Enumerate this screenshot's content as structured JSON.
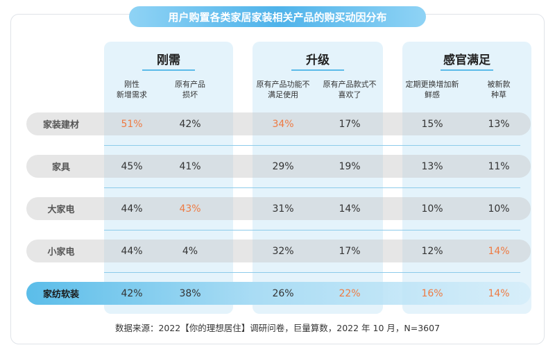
{
  "chart_data": {
    "type": "table",
    "title": "用户购置各类家居家装相关产品的购买动因分布",
    "groups": [
      {
        "name": "刚需",
        "columns": [
          "刚性新增需求",
          "原有产品损坏"
        ]
      },
      {
        "name": "升级",
        "columns": [
          "原有产品功能不满足使用",
          "原有产品款式不喜欢了"
        ]
      },
      {
        "name": "感官满足",
        "columns": [
          "定期更换增加新鲜感",
          "被新款种草"
        ]
      }
    ],
    "column_headers": [
      [
        "刚性",
        "新增需求"
      ],
      [
        "原有产品",
        "损坏"
      ],
      [
        "原有产品功能不",
        "满足使用"
      ],
      [
        "原有产品款式不",
        "喜欢了"
      ],
      [
        "定期更换增加新",
        "鲜感"
      ],
      [
        "被新款",
        "种草"
      ]
    ],
    "rows": [
      {
        "label": "家装建材",
        "values": [
          "51%",
          "42%",
          "34%",
          "17%",
          "15%",
          "13%"
        ],
        "highlight_cells": [
          0,
          2
        ],
        "highlight_row": false
      },
      {
        "label": "家具",
        "values": [
          "45%",
          "41%",
          "29%",
          "19%",
          "13%",
          "11%"
        ],
        "highlight_cells": [],
        "highlight_row": false
      },
      {
        "label": "大家电",
        "values": [
          "44%",
          "43%",
          "31%",
          "14%",
          "10%",
          "10%"
        ],
        "highlight_cells": [
          1
        ],
        "highlight_row": false
      },
      {
        "label": "小家电",
        "values": [
          "44%",
          "4%",
          "32%",
          "17%",
          "12%",
          "14%"
        ],
        "highlight_cells": [
          5
        ],
        "highlight_row": false
      },
      {
        "label": "家纺软装",
        "values": [
          "42%",
          "38%",
          "26%",
          "22%",
          "16%",
          "14%"
        ],
        "highlight_cells": [
          3,
          4,
          5
        ],
        "highlight_row": true
      }
    ],
    "source": "数据来源：2022【你的理想居住】调研问卷，巨量算数，2022 年 10 月，N=3607"
  },
  "colors": {
    "accent": "#4fb3ea",
    "highlight_value": "#ee7a42",
    "group_background": "#e4f3fb"
  }
}
